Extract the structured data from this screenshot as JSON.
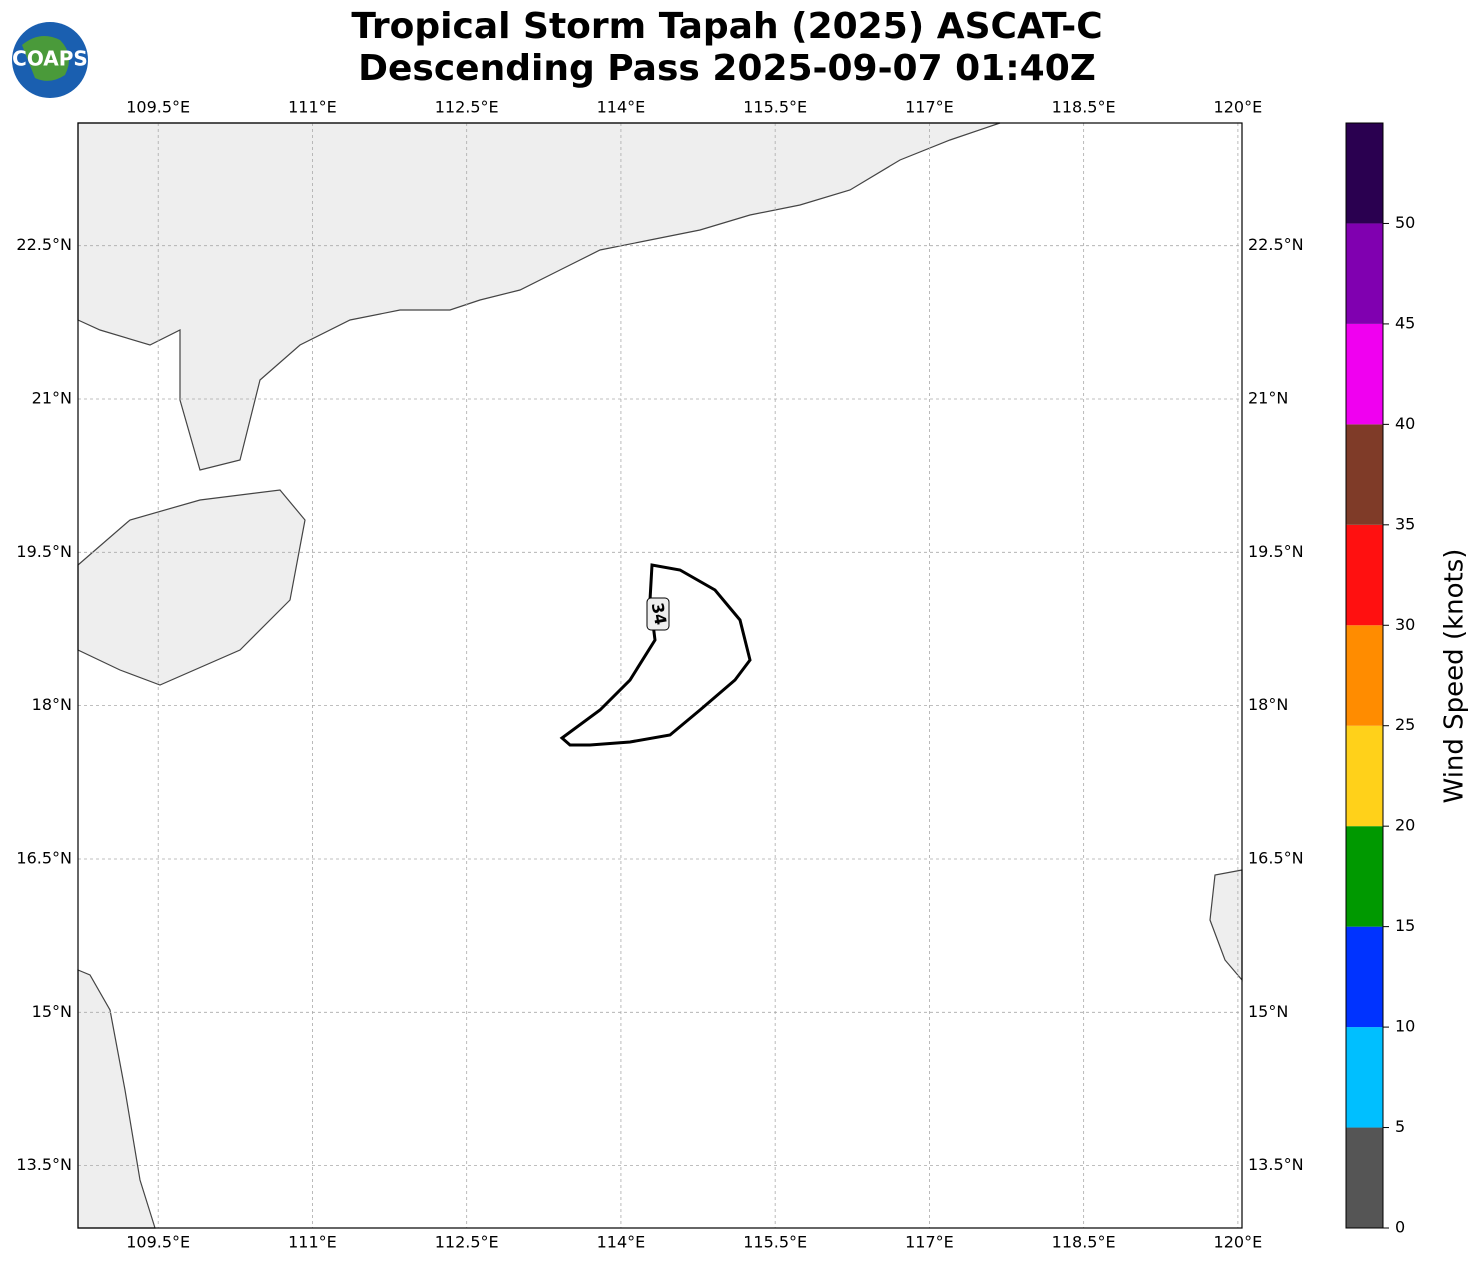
{
  "header": {
    "logo": "COAPS",
    "title": [
      "Tropical Storm Tapah (2025) ASCAT-C",
      "Descending Pass 2025-09-07 01:40Z"
    ]
  },
  "map": {
    "xlim": [
      108.72,
      120.04
    ],
    "ylim": [
      12.89,
      23.7
    ],
    "xticks": [
      {
        "value": 109.5,
        "label": "109.5°E"
      },
      {
        "value": 111,
        "label": "111°E"
      },
      {
        "value": 112.5,
        "label": "112.5°E"
      },
      {
        "value": 114,
        "label": "114°E"
      },
      {
        "value": 115.5,
        "label": "115.5°E"
      },
      {
        "value": 117,
        "label": "117°E"
      },
      {
        "value": 118.5,
        "label": "118.5°E"
      },
      {
        "value": 120,
        "label": "120°E"
      }
    ],
    "yticks": [
      {
        "value": 13.5,
        "label": "13.5°N"
      },
      {
        "value": 15,
        "label": "15°N"
      },
      {
        "value": 16.5,
        "label": "16.5°N"
      },
      {
        "value": 18,
        "label": "18°N"
      },
      {
        "value": 19.5,
        "label": "19.5°N"
      },
      {
        "value": 21,
        "label": "21°N"
      },
      {
        "value": 22.5,
        "label": "22.5°N"
      }
    ],
    "grid": true,
    "contour_label": "34"
  },
  "colorbar": {
    "label": "Wind Speed (knots)",
    "lim": [
      0,
      55
    ],
    "ticks": [
      0,
      5,
      10,
      15,
      20,
      25,
      30,
      35,
      40,
      45,
      50
    ],
    "colors": [
      "#555555",
      "#00bfff",
      "#0033ff",
      "#009900",
      "#ffd11a",
      "#ff8c00",
      "#ff1010",
      "#7f3b28",
      "#f000f0",
      "#8000b0",
      "#2a0050"
    ]
  }
}
